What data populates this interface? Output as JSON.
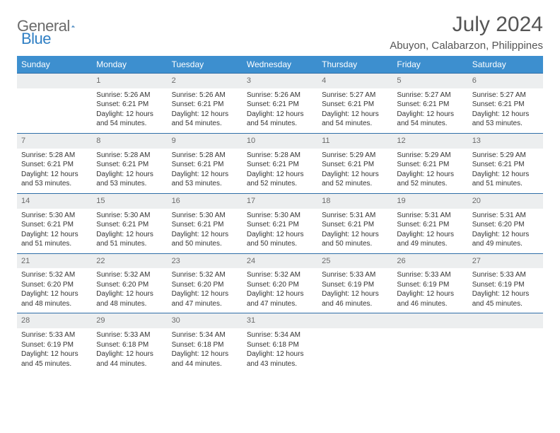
{
  "logo": {
    "text1": "General",
    "text2": "Blue"
  },
  "colors": {
    "header_bg": "#3d8fcf",
    "daynum_bg": "#eceeef",
    "border": "#2f6fa8",
    "brand_blue": "#2f7fc4",
    "text_gray": "#555555"
  },
  "title": "July 2024",
  "location": "Abuyon, Calabarzon, Philippines",
  "day_headers": [
    "Sunday",
    "Monday",
    "Tuesday",
    "Wednesday",
    "Thursday",
    "Friday",
    "Saturday"
  ],
  "weeks": [
    [
      null,
      {
        "n": "1",
        "sr": "Sunrise: 5:26 AM",
        "ss": "Sunset: 6:21 PM",
        "d1": "Daylight: 12 hours",
        "d2": "and 54 minutes."
      },
      {
        "n": "2",
        "sr": "Sunrise: 5:26 AM",
        "ss": "Sunset: 6:21 PM",
        "d1": "Daylight: 12 hours",
        "d2": "and 54 minutes."
      },
      {
        "n": "3",
        "sr": "Sunrise: 5:26 AM",
        "ss": "Sunset: 6:21 PM",
        "d1": "Daylight: 12 hours",
        "d2": "and 54 minutes."
      },
      {
        "n": "4",
        "sr": "Sunrise: 5:27 AM",
        "ss": "Sunset: 6:21 PM",
        "d1": "Daylight: 12 hours",
        "d2": "and 54 minutes."
      },
      {
        "n": "5",
        "sr": "Sunrise: 5:27 AM",
        "ss": "Sunset: 6:21 PM",
        "d1": "Daylight: 12 hours",
        "d2": "and 54 minutes."
      },
      {
        "n": "6",
        "sr": "Sunrise: 5:27 AM",
        "ss": "Sunset: 6:21 PM",
        "d1": "Daylight: 12 hours",
        "d2": "and 53 minutes."
      }
    ],
    [
      {
        "n": "7",
        "sr": "Sunrise: 5:28 AM",
        "ss": "Sunset: 6:21 PM",
        "d1": "Daylight: 12 hours",
        "d2": "and 53 minutes."
      },
      {
        "n": "8",
        "sr": "Sunrise: 5:28 AM",
        "ss": "Sunset: 6:21 PM",
        "d1": "Daylight: 12 hours",
        "d2": "and 53 minutes."
      },
      {
        "n": "9",
        "sr": "Sunrise: 5:28 AM",
        "ss": "Sunset: 6:21 PM",
        "d1": "Daylight: 12 hours",
        "d2": "and 53 minutes."
      },
      {
        "n": "10",
        "sr": "Sunrise: 5:28 AM",
        "ss": "Sunset: 6:21 PM",
        "d1": "Daylight: 12 hours",
        "d2": "and 52 minutes."
      },
      {
        "n": "11",
        "sr": "Sunrise: 5:29 AM",
        "ss": "Sunset: 6:21 PM",
        "d1": "Daylight: 12 hours",
        "d2": "and 52 minutes."
      },
      {
        "n": "12",
        "sr": "Sunrise: 5:29 AM",
        "ss": "Sunset: 6:21 PM",
        "d1": "Daylight: 12 hours",
        "d2": "and 52 minutes."
      },
      {
        "n": "13",
        "sr": "Sunrise: 5:29 AM",
        "ss": "Sunset: 6:21 PM",
        "d1": "Daylight: 12 hours",
        "d2": "and 51 minutes."
      }
    ],
    [
      {
        "n": "14",
        "sr": "Sunrise: 5:30 AM",
        "ss": "Sunset: 6:21 PM",
        "d1": "Daylight: 12 hours",
        "d2": "and 51 minutes."
      },
      {
        "n": "15",
        "sr": "Sunrise: 5:30 AM",
        "ss": "Sunset: 6:21 PM",
        "d1": "Daylight: 12 hours",
        "d2": "and 51 minutes."
      },
      {
        "n": "16",
        "sr": "Sunrise: 5:30 AM",
        "ss": "Sunset: 6:21 PM",
        "d1": "Daylight: 12 hours",
        "d2": "and 50 minutes."
      },
      {
        "n": "17",
        "sr": "Sunrise: 5:30 AM",
        "ss": "Sunset: 6:21 PM",
        "d1": "Daylight: 12 hours",
        "d2": "and 50 minutes."
      },
      {
        "n": "18",
        "sr": "Sunrise: 5:31 AM",
        "ss": "Sunset: 6:21 PM",
        "d1": "Daylight: 12 hours",
        "d2": "and 50 minutes."
      },
      {
        "n": "19",
        "sr": "Sunrise: 5:31 AM",
        "ss": "Sunset: 6:21 PM",
        "d1": "Daylight: 12 hours",
        "d2": "and 49 minutes."
      },
      {
        "n": "20",
        "sr": "Sunrise: 5:31 AM",
        "ss": "Sunset: 6:20 PM",
        "d1": "Daylight: 12 hours",
        "d2": "and 49 minutes."
      }
    ],
    [
      {
        "n": "21",
        "sr": "Sunrise: 5:32 AM",
        "ss": "Sunset: 6:20 PM",
        "d1": "Daylight: 12 hours",
        "d2": "and 48 minutes."
      },
      {
        "n": "22",
        "sr": "Sunrise: 5:32 AM",
        "ss": "Sunset: 6:20 PM",
        "d1": "Daylight: 12 hours",
        "d2": "and 48 minutes."
      },
      {
        "n": "23",
        "sr": "Sunrise: 5:32 AM",
        "ss": "Sunset: 6:20 PM",
        "d1": "Daylight: 12 hours",
        "d2": "and 47 minutes."
      },
      {
        "n": "24",
        "sr": "Sunrise: 5:32 AM",
        "ss": "Sunset: 6:20 PM",
        "d1": "Daylight: 12 hours",
        "d2": "and 47 minutes."
      },
      {
        "n": "25",
        "sr": "Sunrise: 5:33 AM",
        "ss": "Sunset: 6:19 PM",
        "d1": "Daylight: 12 hours",
        "d2": "and 46 minutes."
      },
      {
        "n": "26",
        "sr": "Sunrise: 5:33 AM",
        "ss": "Sunset: 6:19 PM",
        "d1": "Daylight: 12 hours",
        "d2": "and 46 minutes."
      },
      {
        "n": "27",
        "sr": "Sunrise: 5:33 AM",
        "ss": "Sunset: 6:19 PM",
        "d1": "Daylight: 12 hours",
        "d2": "and 45 minutes."
      }
    ],
    [
      {
        "n": "28",
        "sr": "Sunrise: 5:33 AM",
        "ss": "Sunset: 6:19 PM",
        "d1": "Daylight: 12 hours",
        "d2": "and 45 minutes."
      },
      {
        "n": "29",
        "sr": "Sunrise: 5:33 AM",
        "ss": "Sunset: 6:18 PM",
        "d1": "Daylight: 12 hours",
        "d2": "and 44 minutes."
      },
      {
        "n": "30",
        "sr": "Sunrise: 5:34 AM",
        "ss": "Sunset: 6:18 PM",
        "d1": "Daylight: 12 hours",
        "d2": "and 44 minutes."
      },
      {
        "n": "31",
        "sr": "Sunrise: 5:34 AM",
        "ss": "Sunset: 6:18 PM",
        "d1": "Daylight: 12 hours",
        "d2": "and 43 minutes."
      },
      null,
      null,
      null
    ]
  ]
}
